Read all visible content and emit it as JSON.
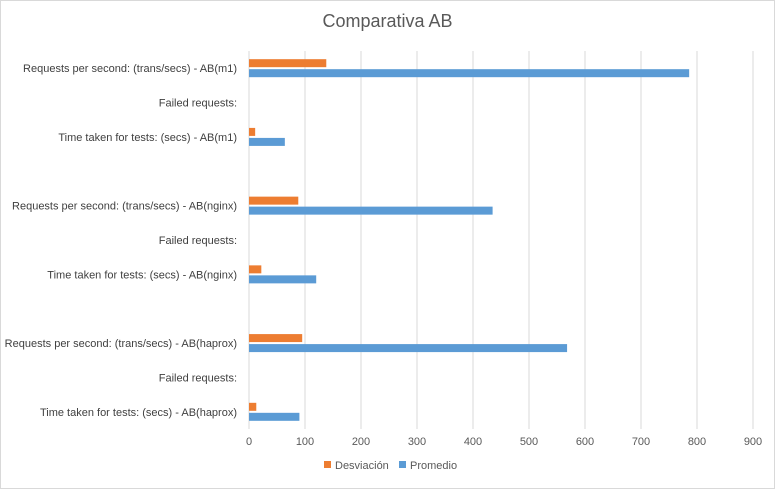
{
  "chart_data": {
    "type": "bar",
    "orientation": "horizontal",
    "title": "Comparativa AB",
    "xlabel": "",
    "ylabel": "",
    "xlim": [
      0,
      900
    ],
    "xticks": [
      "0",
      "100",
      "200",
      "300",
      "400",
      "500",
      "600",
      "700",
      "800",
      "900"
    ],
    "grid": "vertical",
    "legend": "bottom",
    "categories": [
      "Requests per second: (trans/secs) - AB(m1)",
      "Failed requests:",
      "Time taken for tests: (secs) - AB(m1)",
      "",
      "Requests per second: (trans/secs) - AB(nginx)",
      "Failed requests:",
      "Time taken for tests: (secs) - AB(nginx)",
      "",
      "Requests per second: (trans/secs) - AB(haprox)",
      "Failed requests:",
      "Time taken for tests: (secs) - AB(haprox)"
    ],
    "series": [
      {
        "name": "Desviación",
        "color": "#ed7d31",
        "values": [
          138,
          0,
          11,
          null,
          88,
          0,
          22,
          null,
          95,
          0,
          13
        ]
      },
      {
        "name": "Promedio",
        "color": "#5b9bd5",
        "values": [
          786,
          0,
          64,
          null,
          435,
          0,
          120,
          null,
          568,
          0,
          90
        ]
      }
    ]
  }
}
